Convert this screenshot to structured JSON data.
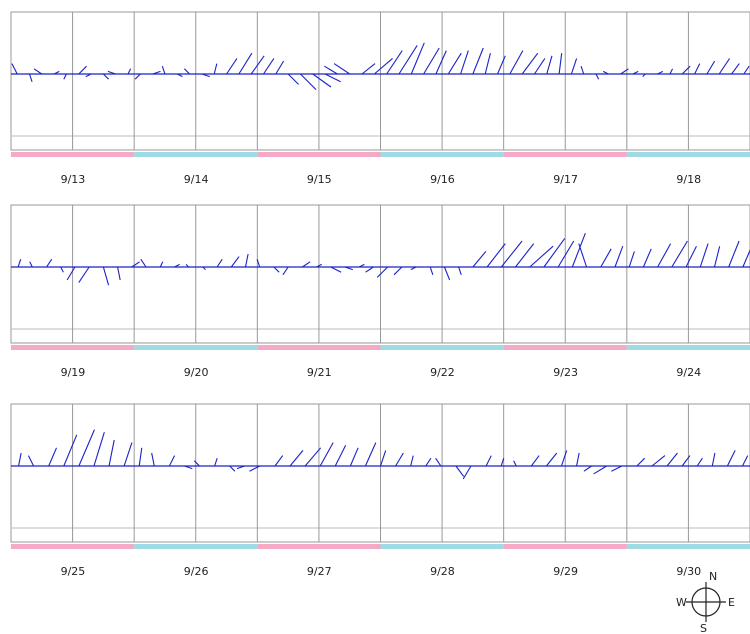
{
  "chart_data": {
    "type": "stick_plot",
    "title": "",
    "xlabel": "",
    "ylabel": "",
    "grid": true,
    "line_color": "#1a22c8",
    "day_band_colors": [
      "#f4a9c6",
      "#9fdbe4"
    ],
    "rows": [
      {
        "dates": [
          "9/13",
          "9/14",
          "9/15",
          "9/16",
          "9/17",
          "9/18"
        ],
        "series": [
          [
            -0.2,
            0.4
          ],
          [
            0.1,
            -0.3
          ],
          [
            -0.3,
            0.2
          ],
          [
            0.2,
            0.1
          ],
          [
            -0.1,
            -0.2
          ],
          [
            0.3,
            0.3
          ],
          [
            -0.2,
            -0.1
          ],
          [
            0.2,
            -0.2
          ],
          [
            -0.3,
            0.1
          ],
          [
            0.1,
            0.2
          ],
          [
            -0.2,
            -0.2
          ],
          [
            0.3,
            0.1
          ],
          [
            -0.1,
            0.3
          ],
          [
            0.2,
            -0.1
          ],
          [
            -0.2,
            0.2
          ],
          [
            0.3,
            -0.1
          ],
          [
            0.1,
            0.4
          ],
          [
            0.4,
            0.6
          ],
          [
            0.5,
            0.8
          ],
          [
            0.5,
            0.7
          ],
          [
            0.4,
            0.6
          ],
          [
            0.3,
            0.5
          ],
          [
            0.4,
            -0.4
          ],
          [
            0.6,
            -0.6
          ],
          [
            0.7,
            -0.5
          ],
          [
            0.6,
            -0.3
          ],
          [
            -0.5,
            0.3
          ],
          [
            -0.6,
            0.4
          ],
          [
            0.5,
            0.4
          ],
          [
            0.7,
            0.6
          ],
          [
            0.6,
            0.9
          ],
          [
            0.7,
            1.1
          ],
          [
            0.5,
            1.2
          ],
          [
            0.6,
            1.0
          ],
          [
            0.4,
            0.9
          ],
          [
            0.5,
            0.8
          ],
          [
            0.3,
            0.9
          ],
          [
            0.4,
            1.0
          ],
          [
            0.2,
            0.8
          ],
          [
            0.3,
            0.7
          ],
          [
            0.5,
            0.9
          ],
          [
            0.6,
            0.8
          ],
          [
            0.4,
            0.6
          ],
          [
            0.2,
            0.7
          ],
          [
            0.1,
            0.8
          ],
          [
            0.2,
            0.6
          ],
          [
            -0.1,
            0.3
          ],
          [
            0.1,
            -0.2
          ],
          [
            -0.2,
            0.1
          ],
          [
            0.3,
            0.2
          ],
          [
            0.2,
            0.1
          ],
          [
            -0.1,
            -0.1
          ],
          [
            0.2,
            0.1
          ],
          [
            0.1,
            0.2
          ],
          [
            0.3,
            0.3
          ],
          [
            0.2,
            0.4
          ],
          [
            0.3,
            0.5
          ],
          [
            0.4,
            0.6
          ],
          [
            0.3,
            0.4
          ],
          [
            0.2,
            0.3
          ]
        ]
      },
      {
        "dates": [
          "9/19",
          "9/20",
          "9/21",
          "9/22",
          "9/23",
          "9/24"
        ],
        "series": [
          [
            0.1,
            0.3
          ],
          [
            -0.1,
            0.2
          ],
          [
            0.2,
            0.3
          ],
          [
            0.1,
            -0.2
          ],
          [
            -0.3,
            -0.5
          ],
          [
            -0.4,
            -0.6
          ],
          [
            0.2,
            -0.7
          ],
          [
            0.1,
            -0.5
          ],
          [
            0.3,
            0.2
          ],
          [
            -0.2,
            0.3
          ],
          [
            0.1,
            0.2
          ],
          [
            0.2,
            0.1
          ],
          [
            -0.1,
            0.1
          ],
          [
            0.1,
            -0.1
          ],
          [
            0.2,
            0.3
          ],
          [
            0.3,
            0.4
          ],
          [
            0.1,
            0.5
          ],
          [
            -0.1,
            0.3
          ],
          [
            0.2,
            -0.2
          ],
          [
            -0.2,
            -0.3
          ],
          [
            0.3,
            0.2
          ],
          [
            0.2,
            0.1
          ],
          [
            0.4,
            -0.2
          ],
          [
            0.3,
            -0.1
          ],
          [
            0.2,
            0.1
          ],
          [
            -0.3,
            -0.2
          ],
          [
            -0.4,
            -0.4
          ],
          [
            -0.3,
            -0.3
          ],
          [
            -0.2,
            -0.1
          ],
          [
            0.1,
            -0.3
          ],
          [
            0.2,
            -0.5
          ],
          [
            0.1,
            -0.3
          ],
          [
            0.5,
            0.6
          ],
          [
            0.7,
            0.9
          ],
          [
            0.8,
            1.0
          ],
          [
            0.7,
            0.9
          ],
          [
            0.9,
            0.8
          ],
          [
            0.8,
            1.1
          ],
          [
            0.6,
            1.0
          ],
          [
            0.5,
            1.3
          ],
          [
            -0.3,
            0.9
          ],
          [
            0.4,
            0.7
          ],
          [
            0.3,
            0.8
          ],
          [
            0.2,
            0.6
          ],
          [
            0.3,
            0.7
          ],
          [
            0.5,
            0.9
          ],
          [
            0.6,
            1.0
          ],
          [
            0.4,
            0.8
          ],
          [
            0.3,
            0.9
          ],
          [
            0.2,
            0.8
          ],
          [
            0.4,
            1.0
          ],
          [
            0.3,
            0.7
          ]
        ]
      },
      {
        "dates": [
          "9/25",
          "9/26",
          "9/27",
          "9/28",
          "9/29",
          "9/30"
        ],
        "series": [
          [
            0.1,
            0.5
          ],
          [
            -0.2,
            0.4
          ],
          [
            0.3,
            0.7
          ],
          [
            0.5,
            1.2
          ],
          [
            0.6,
            1.4
          ],
          [
            0.4,
            1.3
          ],
          [
            0.2,
            1.0
          ],
          [
            0.3,
            0.9
          ],
          [
            0.1,
            0.7
          ],
          [
            -0.1,
            0.5
          ],
          [
            0.2,
            0.4
          ],
          [
            0.3,
            -0.1
          ],
          [
            -0.2,
            0.2
          ],
          [
            0.1,
            0.3
          ],
          [
            0.2,
            -0.2
          ],
          [
            -0.3,
            -0.1
          ],
          [
            -0.4,
            -0.2
          ],
          [
            0.3,
            0.4
          ],
          [
            0.5,
            0.6
          ],
          [
            0.6,
            0.7
          ],
          [
            0.5,
            0.9
          ],
          [
            0.4,
            0.8
          ],
          [
            0.3,
            0.7
          ],
          [
            0.4,
            0.9
          ],
          [
            0.2,
            0.6
          ],
          [
            0.3,
            0.5
          ],
          [
            0.1,
            0.4
          ],
          [
            0.2,
            0.3
          ],
          [
            -0.2,
            0.3
          ],
          [
            0.3,
            -0.4
          ],
          [
            -0.3,
            -0.5
          ],
          [
            0.2,
            0.4
          ],
          [
            0.1,
            0.3
          ],
          [
            -0.1,
            0.2
          ],
          [
            0.3,
            0.4
          ],
          [
            0.4,
            0.5
          ],
          [
            0.2,
            0.6
          ],
          [
            0.1,
            0.5
          ],
          [
            -0.3,
            -0.2
          ],
          [
            -0.5,
            -0.3
          ],
          [
            -0.4,
            -0.2
          ],
          [
            0.3,
            0.3
          ],
          [
            0.5,
            0.4
          ],
          [
            0.4,
            0.5
          ],
          [
            0.3,
            0.4
          ],
          [
            0.2,
            0.3
          ],
          [
            0.1,
            0.5
          ],
          [
            0.3,
            0.6
          ],
          [
            0.2,
            0.4
          ]
        ]
      }
    ]
  },
  "compass": {
    "north": "N",
    "south": "S",
    "west": "W",
    "east": "E"
  }
}
